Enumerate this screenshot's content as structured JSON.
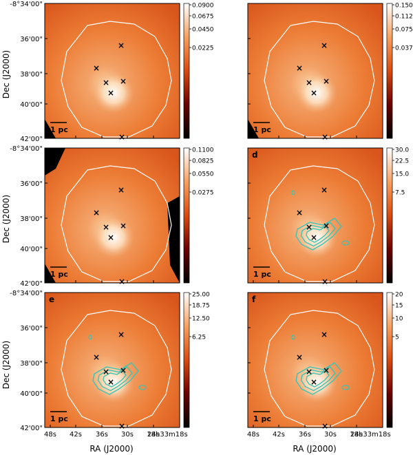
{
  "figure": {
    "ylabel": "Dec (J2000)",
    "xlabel": "RA (J2000)",
    "dec_ticks": [
      "-8°34'00\"",
      "36'00\"",
      "38'00\"",
      "40'00\"",
      "42'00\""
    ],
    "ra_ticks": [
      "48s",
      "42s",
      "36s",
      "30s",
      "24s",
      "18h33m18s"
    ],
    "scalebar_label": "1 pc",
    "colors": {
      "map_mid": "#ee7a2e",
      "contour_outline": "#ffffff",
      "contour_emission": "#3cc3b4",
      "markers": "#1a1ad0"
    },
    "marker_symbol": "×"
  },
  "panels": [
    {
      "id": "a",
      "label": "",
      "colorbar_ticks": [
        "0.0900",
        "0.0675",
        "0.0450",
        "0.0225"
      ],
      "has_contours": false
    },
    {
      "id": "b",
      "label": "",
      "colorbar_ticks": [
        "0.1500",
        "0.1125",
        "0.0750",
        "0.0375"
      ],
      "has_contours": false
    },
    {
      "id": "c",
      "label": "",
      "colorbar_ticks": [
        "0.1100",
        "0.0825",
        "0.0550",
        "0.0275"
      ],
      "has_contours": false
    },
    {
      "id": "d",
      "label": "d",
      "colorbar_ticks": [
        "30.0",
        "22.5",
        "15.0",
        "7.5"
      ],
      "has_contours": true
    },
    {
      "id": "e",
      "label": "e",
      "colorbar_ticks": [
        "25.00",
        "18.75",
        "12.50",
        "6.25"
      ],
      "has_contours": true
    },
    {
      "id": "f",
      "label": "f",
      "colorbar_ticks": [
        "20",
        "15",
        "10",
        "5"
      ],
      "has_contours": true
    }
  ]
}
